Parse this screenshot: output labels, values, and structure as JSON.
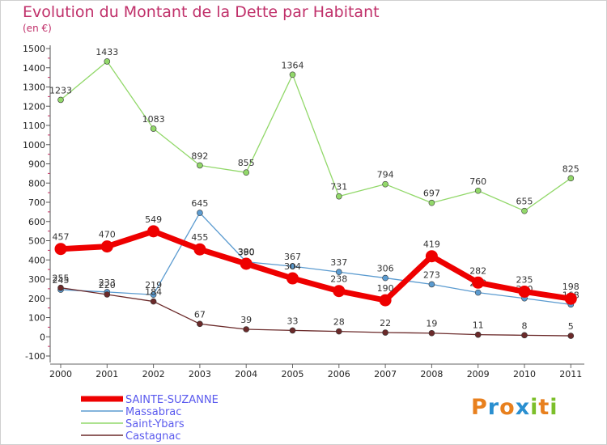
{
  "title": "Evolution du Montant de la Dette par Habitant",
  "subtitle": "(en €)",
  "logo": {
    "text": "Proxiti",
    "letters": [
      "P",
      "r",
      "o",
      "x",
      "i",
      "t",
      "i"
    ],
    "colors": [
      "#e8801e",
      "#2a8fd0",
      "#e8801e",
      "#2a8fd0",
      "#7cbf2a",
      "#e8801e",
      "#7cbf2a"
    ]
  },
  "chart_data": {
    "type": "line",
    "x": [
      "2000",
      "2001",
      "2002",
      "2003",
      "2004",
      "2005",
      "2006",
      "2007",
      "2008",
      "2009",
      "2010",
      "2011"
    ],
    "ylim": [
      -100,
      1500
    ],
    "yticks": [
      -100,
      0,
      100,
      200,
      300,
      400,
      500,
      600,
      700,
      800,
      900,
      1000,
      1100,
      1200,
      1300,
      1400,
      1500
    ],
    "grid": false,
    "legend_position": "bottom-left",
    "series": [
      {
        "name": "Saint-Ybars",
        "color": "#92d86a",
        "values": [
          1233,
          1433,
          1083,
          892,
          855,
          1364,
          731,
          794,
          697,
          760,
          655,
          825
        ]
      },
      {
        "name": "Massabrac",
        "color": "#5b9bd0",
        "values": [
          245,
          233,
          219,
          645,
          390,
          367,
          337,
          306,
          273,
          230,
          200,
          168
        ]
      },
      {
        "name": "Castagnac",
        "color": "#6b2a2a",
        "values": [
          255,
          220,
          184,
          67,
          39,
          33,
          28,
          22,
          19,
          11,
          8,
          5
        ]
      },
      {
        "name": "SAINTE-SUZANNE",
        "color": "#ee0000",
        "values": [
          457,
          470,
          549,
          455,
          380,
          304,
          238,
          190,
          419,
          282,
          235,
          198
        ]
      }
    ],
    "legend": [
      "SAINTE-SUZANNE",
      "Massabrac",
      "Saint-Ybars",
      "Castagnac"
    ]
  }
}
